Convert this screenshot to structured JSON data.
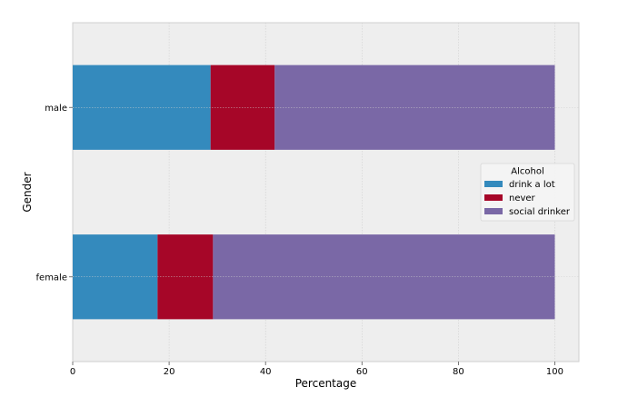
{
  "chart_data": {
    "type": "bar",
    "orientation": "horizontal",
    "stacked": true,
    "title": "",
    "xlabel": "Percentage",
    "ylabel": "Gender",
    "categories": [
      "female",
      "male"
    ],
    "series": [
      {
        "name": "drink a lot",
        "values": [
          17.6,
          28.6
        ]
      },
      {
        "name": "never",
        "values": [
          11.5,
          13.3
        ]
      },
      {
        "name": "social drinker",
        "values": [
          70.9,
          58.1
        ]
      }
    ],
    "xlim": [
      0,
      105
    ],
    "xticks": [
      0,
      20,
      40,
      60,
      80,
      100
    ],
    "grid": true,
    "legend": {
      "title": "Alcohol",
      "position": "right"
    },
    "colors": [
      "#348abd",
      "#a60628",
      "#7a68a6"
    ],
    "background": "#eeeeee",
    "grid_color": "#cfcfcf"
  }
}
